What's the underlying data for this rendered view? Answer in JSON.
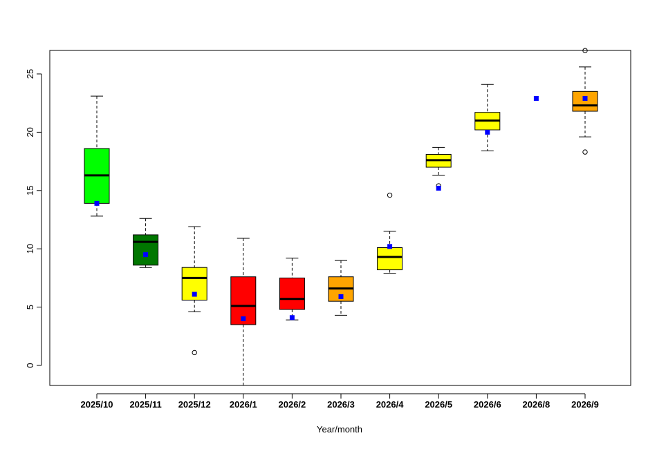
{
  "chart_data": {
    "type": "boxplot",
    "xlabel": "Year/month",
    "ylabel": "",
    "title": "",
    "ylim": [
      -1.7,
      27
    ],
    "yticks": [
      0,
      5,
      10,
      15,
      20,
      25
    ],
    "grid": false,
    "legend": "none",
    "colors": {
      "box_outline": "#000000",
      "mean_marker": "#0000ff",
      "outlier": "#000000"
    },
    "categories": [
      "2025/10",
      "2025/11",
      "2025/12",
      "2026/1",
      "2026/2",
      "2026/3",
      "2026/4",
      "2026/5",
      "2026/6",
      "2026/8",
      "2026/9"
    ],
    "boxes": [
      {
        "label": "2025/10",
        "fill": "#00ff00",
        "whisker_low": 12.8,
        "q1": 13.9,
        "median": 16.3,
        "q3": 18.6,
        "whisker_high": 23.1,
        "mean": 13.9,
        "outliers": []
      },
      {
        "label": "2025/11",
        "fill": "#007700",
        "whisker_low": 8.4,
        "q1": 8.6,
        "median": 10.6,
        "q3": 11.2,
        "whisker_high": 12.6,
        "mean": 9.5,
        "outliers": []
      },
      {
        "label": "2025/12",
        "fill": "#ffff00",
        "whisker_low": 4.6,
        "q1": 5.6,
        "median": 7.5,
        "q3": 8.4,
        "whisker_high": 11.9,
        "mean": 6.1,
        "outliers": [
          1.1
        ]
      },
      {
        "label": "2026/1",
        "fill": "#ff0000",
        "whisker_low": -1.7,
        "q1": 3.5,
        "median": 5.1,
        "q3": 7.6,
        "whisker_high": 10.9,
        "mean": 4.0,
        "outliers": []
      },
      {
        "label": "2026/2",
        "fill": "#ff0000",
        "whisker_low": 3.9,
        "q1": 4.8,
        "median": 5.7,
        "q3": 7.5,
        "whisker_high": 9.2,
        "mean": 4.1,
        "outliers": []
      },
      {
        "label": "2026/3",
        "fill": "#ffa500",
        "whisker_low": 4.3,
        "q1": 5.5,
        "median": 6.6,
        "q3": 7.6,
        "whisker_high": 9.0,
        "mean": 5.9,
        "outliers": []
      },
      {
        "label": "2026/4",
        "fill": "#ffff00",
        "whisker_low": 7.9,
        "q1": 8.2,
        "median": 9.3,
        "q3": 10.1,
        "whisker_high": 11.5,
        "mean": 10.2,
        "outliers": [
          14.6
        ]
      },
      {
        "label": "2026/5",
        "fill": "#ffff00",
        "whisker_low": 16.3,
        "q1": 17.0,
        "median": 17.6,
        "q3": 18.1,
        "whisker_high": 18.7,
        "mean": 15.2,
        "outliers": [
          15.4
        ]
      },
      {
        "label": "2026/6",
        "fill": "#ffff00",
        "whisker_low": 18.4,
        "q1": 20.2,
        "median": 21.0,
        "q3": 21.7,
        "whisker_high": 24.1,
        "mean": 20.0,
        "outliers": []
      },
      {
        "label": "2026/8",
        "fill": "#ffff00",
        "whisker_low": null,
        "q1": null,
        "median": null,
        "q3": null,
        "whisker_high": null,
        "mean": 22.9,
        "outliers": []
      },
      {
        "label": "2026/9",
        "fill": "#ffa500",
        "whisker_low": 19.6,
        "q1": 21.8,
        "median": 22.3,
        "q3": 23.5,
        "whisker_high": 25.6,
        "mean": 22.9,
        "outliers": [
          18.3,
          27.0
        ]
      }
    ]
  }
}
